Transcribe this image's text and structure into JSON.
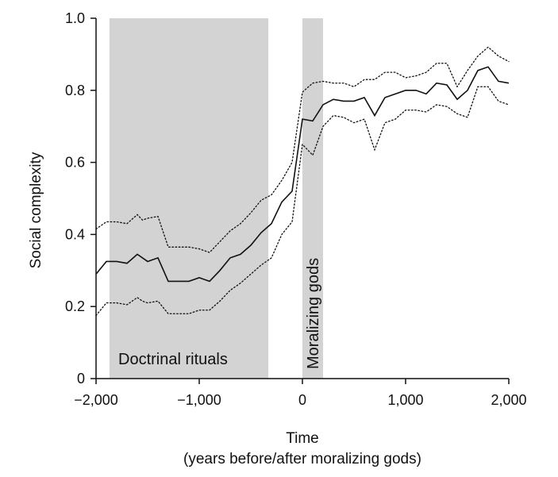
{
  "chart_data": {
    "type": "line",
    "title": "",
    "xlabel": "Time",
    "xlabel_sub": "(years before/after moralizing gods)",
    "ylabel": "Social complexity",
    "xlim": [
      -2000,
      2000
    ],
    "ylim": [
      0,
      1.0
    ],
    "x_ticks": [
      -2000,
      -1000,
      0,
      1000,
      2000
    ],
    "x_tick_labels": [
      "−2,000",
      "−1,000",
      "0",
      "1,000",
      "2,000"
    ],
    "y_ticks": [
      0,
      0.2,
      0.4,
      0.6,
      0.8,
      1.0
    ],
    "y_tick_labels": [
      "0",
      "0.2",
      "0.4",
      "0.6",
      "0.8",
      "1.0"
    ],
    "grid": false,
    "shaded_regions": [
      {
        "label": "Doctrinal rituals",
        "x_start": -1870,
        "x_end": -330,
        "color": "#d3d3d3"
      },
      {
        "label": "Moralizing gods",
        "x_start": 0,
        "x_end": 200,
        "color": "#d3d3d3"
      }
    ],
    "x": [
      -2000,
      -1900,
      -1800,
      -1700,
      -1600,
      -1550,
      -1500,
      -1400,
      -1300,
      -1200,
      -1100,
      -1000,
      -900,
      -800,
      -700,
      -600,
      -500,
      -400,
      -300,
      -200,
      -100,
      0,
      100,
      200,
      300,
      400,
      500,
      600,
      700,
      800,
      900,
      1000,
      1100,
      1200,
      1300,
      1400,
      1500,
      1600,
      1700,
      1800,
      1900,
      2000
    ],
    "series": [
      {
        "style": "solid",
        "values": [
          0.29,
          0.325,
          0.325,
          0.32,
          0.345,
          0.335,
          0.325,
          0.335,
          0.27,
          0.27,
          0.27,
          0.28,
          0.27,
          0.3,
          0.335,
          0.345,
          0.37,
          0.405,
          0.43,
          0.49,
          0.52,
          0.72,
          0.715,
          0.76,
          0.775,
          0.77,
          0.77,
          0.78,
          0.73,
          0.78,
          0.79,
          0.8,
          0.8,
          0.79,
          0.82,
          0.815,
          0.775,
          0.8,
          0.855,
          0.865,
          0.825,
          0.82
        ]
      },
      {
        "style": "dotted",
        "values": [
          0.415,
          0.435,
          0.435,
          0.43,
          0.455,
          0.44,
          0.445,
          0.45,
          0.365,
          0.365,
          0.365,
          0.36,
          0.35,
          0.38,
          0.41,
          0.43,
          0.46,
          0.495,
          0.51,
          0.55,
          0.6,
          0.795,
          0.82,
          0.825,
          0.82,
          0.82,
          0.81,
          0.83,
          0.83,
          0.85,
          0.85,
          0.835,
          0.84,
          0.85,
          0.875,
          0.875,
          0.81,
          0.855,
          0.895,
          0.92,
          0.895,
          0.88
        ]
      },
      {
        "style": "dotted",
        "values": [
          0.175,
          0.21,
          0.21,
          0.205,
          0.225,
          0.215,
          0.21,
          0.215,
          0.18,
          0.18,
          0.18,
          0.19,
          0.19,
          0.215,
          0.245,
          0.265,
          0.29,
          0.315,
          0.335,
          0.4,
          0.435,
          0.65,
          0.62,
          0.7,
          0.73,
          0.725,
          0.71,
          0.72,
          0.635,
          0.71,
          0.72,
          0.745,
          0.745,
          0.74,
          0.76,
          0.755,
          0.735,
          0.725,
          0.81,
          0.81,
          0.77,
          0.76
        ]
      }
    ]
  }
}
